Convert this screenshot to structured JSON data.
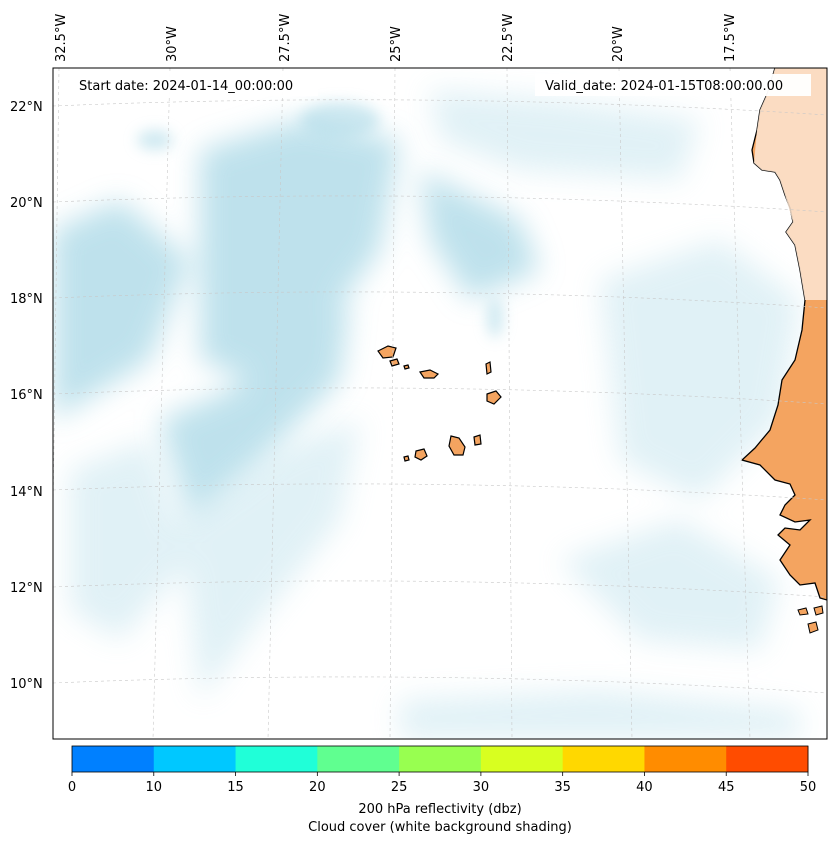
{
  "map": {
    "start_date_text": "Start date: 2024-01-14_00:00:00",
    "valid_date_text": "Valid_date: 2024-01-15T08:00:00.00",
    "lon_labels": [
      "32.5°W",
      "30°W",
      "27.5°W",
      "25°W",
      "22.5°W",
      "20°W",
      "17.5°W"
    ],
    "lat_labels": [
      "22°N",
      "20°N",
      "18°N",
      "16°N",
      "14°N",
      "12°N",
      "10°N"
    ],
    "land_color": "#f4a460",
    "cloud_color": "#a9d8e6",
    "coastline_color": "#000000",
    "gridline_style": "dashed",
    "grid": true
  },
  "colorbar": {
    "ticks": [
      "0",
      "10",
      "15",
      "20",
      "25",
      "30",
      "35",
      "40",
      "45",
      "50"
    ],
    "colors": [
      "#0080ff",
      "#00c8ff",
      "#20ffd8",
      "#60ff90",
      "#98ff50",
      "#d8ff20",
      "#ffd800",
      "#ff8c00",
      "#ff4c00"
    ],
    "label_line1": "200 hPa reflectivity (dbz)",
    "label_line2": "Cloud cover (white background shading)"
  }
}
